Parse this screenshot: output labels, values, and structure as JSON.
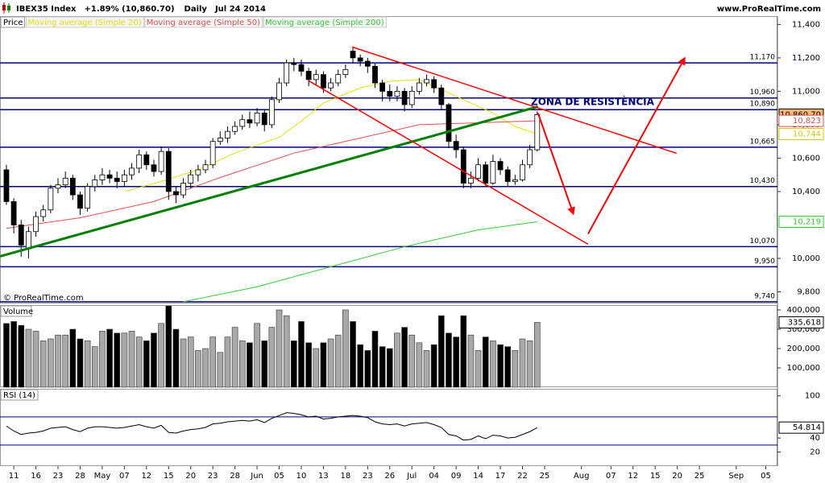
{
  "header": {
    "symbol": "IBEX35 Index",
    "change": "+1.89% (10,860.70)",
    "period": "Daily",
    "date": "Jul 24 2014",
    "source": "www.ProRealTime.com"
  },
  "chart_data": [
    {
      "type": "candlestick",
      "name": "Price",
      "copyright": "© ProRealTime.com",
      "annotation": "ZONA DE RESISTÈNCIA",
      "open": [
        10530,
        10340,
        10200,
        10060,
        10160,
        10250,
        10290,
        10420,
        10440,
        10480,
        10380,
        10300,
        10430,
        10470,
        10500,
        10480,
        10460,
        10500,
        10540,
        10620,
        10560,
        10520,
        10640,
        10400,
        10380,
        10450,
        10500,
        10530,
        10560,
        10700,
        10720,
        10760,
        10790,
        10830,
        10810,
        10870,
        10800,
        10950,
        11050,
        11170,
        11160,
        11120,
        11070,
        11100,
        11020,
        11050,
        11100,
        11240,
        11200,
        11180,
        11150,
        11050,
        11000,
        10970,
        11000,
        10920,
        11000,
        11050,
        11070,
        11020,
        10920,
        10700,
        10650,
        10450,
        10480,
        10560,
        10450,
        10580,
        10530,
        10460,
        10470,
        10560,
        10650
      ],
      "high": [
        10560,
        10360,
        10230,
        10190,
        10280,
        10320,
        10440,
        10480,
        10520,
        10500,
        10400,
        10450,
        10500,
        10540,
        10530,
        10520,
        10530,
        10570,
        10650,
        10640,
        10590,
        10670,
        10660,
        10430,
        10480,
        10530,
        10560,
        10590,
        10720,
        10760,
        10790,
        10820,
        10860,
        10880,
        10900,
        10890,
        10970,
        11080,
        11190,
        11200,
        11190,
        11140,
        11130,
        11120,
        11080,
        11130,
        11160,
        11260,
        11220,
        11200,
        11170,
        11070,
        11040,
        11030,
        11020,
        11030,
        11080,
        11100,
        11090,
        11040,
        10930,
        10740,
        10670,
        10520,
        10600,
        10580,
        10620,
        10600,
        10550,
        10500,
        10590,
        10680,
        10880
      ],
      "low": [
        10320,
        10150,
        10010,
        10000,
        10130,
        10220,
        10270,
        10390,
        10420,
        10350,
        10260,
        10280,
        10400,
        10440,
        10450,
        10420,
        10430,
        10470,
        10510,
        10530,
        10490,
        10500,
        10350,
        10330,
        10360,
        10420,
        10460,
        10510,
        10540,
        10680,
        10690,
        10740,
        10770,
        10780,
        10790,
        10760,
        10780,
        10930,
        11030,
        11120,
        11090,
        11030,
        11040,
        10990,
        11000,
        11030,
        11080,
        11170,
        11150,
        11110,
        11020,
        10940,
        10940,
        10940,
        10880,
        10900,
        10980,
        11030,
        10990,
        10890,
        10660,
        10600,
        10420,
        10420,
        10460,
        10430,
        10440,
        10500,
        10430,
        10440,
        10460,
        10540,
        10640
      ],
      "close": [
        10340,
        10200,
        10080,
        10160,
        10250,
        10290,
        10420,
        10440,
        10480,
        10380,
        10300,
        10430,
        10470,
        10500,
        10480,
        10460,
        10500,
        10540,
        10620,
        10560,
        10520,
        10640,
        10400,
        10380,
        10450,
        10500,
        10530,
        10560,
        10700,
        10720,
        10760,
        10790,
        10830,
        10810,
        10870,
        10800,
        10950,
        11050,
        11170,
        11160,
        11120,
        11070,
        11100,
        11020,
        11050,
        11100,
        11130,
        11200,
        11180,
        11150,
        11050,
        11000,
        10970,
        11000,
        10920,
        11000,
        11050,
        11070,
        11020,
        10920,
        10700,
        10650,
        10450,
        10480,
        10560,
        10450,
        10580,
        10530,
        10460,
        10470,
        10560,
        10650,
        10860
      ],
      "up_color": "#ffffff",
      "down_color": "#000000",
      "overlays": [
        {
          "name": "Moving average (Simple 20)",
          "color": "#e8e000",
          "x": [
            16,
            21,
            26,
            31,
            37,
            40,
            43,
            48,
            52,
            56,
            60,
            63,
            66,
            69,
            72
          ],
          "values": [
            10400,
            10460,
            10530,
            10630,
            10725,
            10822,
            10930,
            11020,
            11060,
            11070,
            10990,
            10930,
            10870,
            10790,
            10744
          ]
        },
        {
          "name": "Moving average (Simple 50)",
          "color": "#e05050",
          "x": [
            0,
            10,
            20,
            29,
            39,
            46,
            56,
            72
          ],
          "values": [
            10180,
            10243,
            10340,
            10484,
            10630,
            10700,
            10800,
            10823
          ]
        },
        {
          "name": "Moving average (Simple 200)",
          "color": "#33cc33",
          "x": [
            24,
            34,
            44,
            54,
            64,
            72
          ],
          "values": [
            9740,
            9830,
            9950,
            10070,
            10170,
            10219
          ]
        }
      ],
      "levels": [
        {
          "value": 11170,
          "label": "11,170"
        },
        {
          "value": 10960,
          "label": "10,960"
        },
        {
          "value": 10890,
          "label": "10,890"
        },
        {
          "value": 10665,
          "label": "10,665"
        },
        {
          "value": 10430,
          "label": "10,430"
        },
        {
          "value": 10070,
          "label": "10,070"
        },
        {
          "value": 9950,
          "label": "9,950"
        },
        {
          "value": 9740,
          "label": "9,740"
        }
      ],
      "level_color": "#000080",
      "lines": [
        {
          "color": "#008000",
          "width": 3,
          "x": [
            -0.87,
            72.1
          ],
          "y": [
            10012,
            10908
          ]
        },
        {
          "color": "#ff0000",
          "width": 1.5,
          "x": [
            46.9,
            90.9
          ],
          "y": [
            11265,
            10629
          ]
        },
        {
          "color": "#ff0000",
          "width": 1.5,
          "x": [
            41,
            78.9
          ],
          "y": [
            11063,
            10084
          ]
        }
      ],
      "arrows": [
        {
          "color": "#ff0000",
          "x": [
            72.1,
            76.9
          ],
          "y": [
            10870,
            10267
          ]
        },
        {
          "color": "#ff0000",
          "x": [
            78.9,
            92
          ],
          "y": [
            10147,
            11198
          ]
        }
      ],
      "markers": [
        {
          "value": 10860.7,
          "label": "10,860.70",
          "color": "#000000",
          "fill": "#f9b872"
        },
        {
          "value": 10823,
          "label": "10,823",
          "color": "#e05050"
        },
        {
          "value": 10744,
          "label": "10,744",
          "color": "#d8c800"
        },
        {
          "value": 10219,
          "label": "10,219",
          "color": "#33cc33"
        }
      ],
      "xlim": [
        -0.87,
        104.59
      ],
      "ylim": [
        9730,
        11450
      ],
      "yticks": [
        {
          "value": 11400,
          "label": "11,400"
        },
        {
          "value": 11200,
          "label": "11,200"
        },
        {
          "value": 11000,
          "label": "11,000"
        },
        {
          "value": 10800,
          "label": "10,800"
        },
        {
          "value": 10600,
          "label": "10,600"
        },
        {
          "value": 10400,
          "label": "10,400"
        },
        {
          "value": 10000,
          "label": "10,000"
        },
        {
          "value": 9800,
          "label": "9,800"
        }
      ]
    },
    {
      "type": "bar",
      "title": "Volume",
      "values": [
        330000,
        340000,
        320000,
        300000,
        290000,
        240000,
        250000,
        270000,
        270000,
        300000,
        250000,
        240000,
        210000,
        290000,
        300000,
        280000,
        280000,
        290000,
        260000,
        240000,
        280000,
        330000,
        420000,
        300000,
        250000,
        260000,
        190000,
        200000,
        260000,
        180000,
        260000,
        310000,
        240000,
        230000,
        330000,
        240000,
        310000,
        400000,
        370000,
        240000,
        340000,
        230000,
        200000,
        230000,
        250000,
        270000,
        400000,
        340000,
        220000,
        190000,
        290000,
        210000,
        200000,
        280000,
        310000,
        270000,
        230000,
        190000,
        220000,
        370000,
        280000,
        260000,
        370000,
        270000,
        190000,
        260000,
        240000,
        220000,
        210000,
        190000,
        250000,
        240000,
        335618
      ],
      "up_color": "#a8a8a8",
      "down_color": "#000000",
      "xlim": [
        -0.87,
        104.59
      ],
      "ylim": [
        0,
        425000
      ],
      "yticks": [
        {
          "value": 400000,
          "label": "400,000"
        },
        {
          "value": 300000,
          "label": "300,000"
        },
        {
          "value": 200000,
          "label": "200,000"
        },
        {
          "value": 100000,
          "label": "100,000"
        }
      ],
      "markers": [
        {
          "value": 335618,
          "label": "335,618",
          "color": "#000000"
        }
      ]
    },
    {
      "type": "line",
      "title": "RSI (14)",
      "color": "#000000",
      "values": [
        57,
        50,
        45,
        47,
        48,
        50,
        54,
        55,
        56,
        52,
        49,
        54,
        56,
        56,
        55,
        54,
        55,
        57,
        59,
        56,
        54,
        58,
        48,
        47,
        50,
        52,
        53,
        55,
        60,
        61,
        63,
        64,
        65,
        64,
        66,
        62,
        68,
        72,
        76,
        75,
        73,
        70,
        71,
        67,
        68,
        70,
        71,
        72,
        71,
        69,
        63,
        60,
        59,
        60,
        57,
        60,
        61,
        62,
        59,
        55,
        45,
        43,
        37,
        38,
        43,
        39,
        44,
        43,
        40,
        41,
        45,
        49,
        54.814
      ],
      "levels": [
        70,
        30
      ],
      "level_color": "#000080",
      "xlim": [
        -0.87,
        104.59
      ],
      "ylim": [
        0,
        110
      ],
      "yticks": [
        100,
        40,
        20
      ],
      "markers": [
        {
          "value": 54.814,
          "label": "54.814",
          "color": "#000000"
        }
      ],
      "xticks": [
        {
          "value": 1,
          "label": "11"
        },
        {
          "value": 4,
          "label": "16"
        },
        {
          "value": 7,
          "label": "23"
        },
        {
          "value": 10,
          "label": "28"
        },
        {
          "value": 13,
          "label": "May"
        },
        {
          "value": 16,
          "label": "07"
        },
        {
          "value": 19,
          "label": "12"
        },
        {
          "value": 22,
          "label": "15"
        },
        {
          "value": 25,
          "label": "20"
        },
        {
          "value": 28,
          "label": "23"
        },
        {
          "value": 31,
          "label": "28"
        },
        {
          "value": 34,
          "label": "Jun"
        },
        {
          "value": 37,
          "label": "05"
        },
        {
          "value": 40,
          "label": "10"
        },
        {
          "value": 43,
          "label": "13"
        },
        {
          "value": 46,
          "label": "18"
        },
        {
          "value": 49,
          "label": "23"
        },
        {
          "value": 52,
          "label": "26"
        },
        {
          "value": 55,
          "label": "Jul"
        },
        {
          "value": 58,
          "label": "04"
        },
        {
          "value": 61,
          "label": "09"
        },
        {
          "value": 64,
          "label": "14"
        },
        {
          "value": 67,
          "label": "17"
        },
        {
          "value": 70,
          "label": "22"
        },
        {
          "value": 73,
          "label": "25"
        },
        {
          "value": 78,
          "label": "Aug"
        },
        {
          "value": 82,
          "label": "07"
        },
        {
          "value": 85,
          "label": "12"
        },
        {
          "value": 88,
          "label": "15"
        },
        {
          "value": 91,
          "label": "20"
        },
        {
          "value": 94,
          "label": "25"
        },
        {
          "value": 99,
          "label": "Sep"
        },
        {
          "value": 103,
          "label": "05"
        }
      ]
    }
  ]
}
